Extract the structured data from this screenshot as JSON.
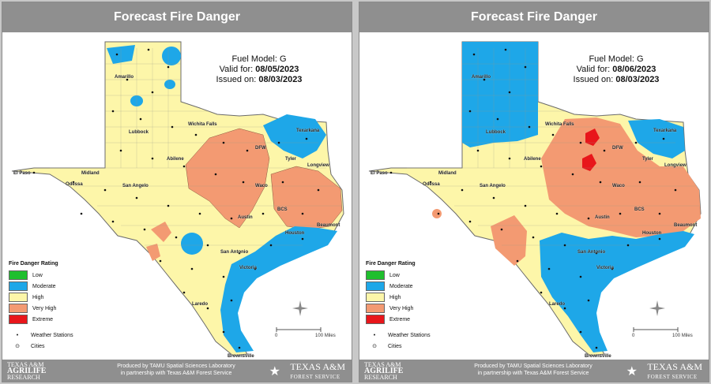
{
  "panels": [
    {
      "title": "Forecast Fire Danger",
      "fuel_model": "Fuel Model: G",
      "valid_label": "Valid for:",
      "valid_date": "08/05/2023",
      "issued_label": "Issued on:",
      "issued_date": "08/03/2023"
    },
    {
      "title": "Forecast Fire Danger",
      "fuel_model": "Fuel Model: G",
      "valid_label": "Valid for:",
      "valid_date": "08/06/2023",
      "issued_label": "Issued on:",
      "issued_date": "08/03/2023"
    }
  ],
  "legend": {
    "title": "Fire Danger Rating",
    "items": [
      {
        "label": "Low",
        "color": "#1fbf2e"
      },
      {
        "label": "Moderate",
        "color": "#1ea7e8"
      },
      {
        "label": "High",
        "color": "#fdf6a9"
      },
      {
        "label": "Very High",
        "color": "#f39a72"
      },
      {
        "label": "Extreme",
        "color": "#e8161b"
      }
    ],
    "stations": "Weather Stations",
    "cities": "Cities"
  },
  "scale": {
    "zero": "0",
    "max": "100 Miles"
  },
  "cities": [
    "Amarillo",
    "Lubbock",
    "Wichita Falls",
    "DFW",
    "Texarkana",
    "Abilene",
    "Tyler",
    "Longview",
    "El Paso",
    "Midland",
    "Odessa",
    "San Angelo",
    "Waco",
    "BCS",
    "Austin",
    "Beaumont",
    "Houston",
    "San Antonio",
    "Victoria",
    "Laredo",
    "Brownsville"
  ],
  "footer": {
    "credit_line1": "Produced by TAMU Spatial Sciences Laboratory",
    "credit_line2": "in partnership with Texas A&M Forest Service",
    "agrilife_top": "TEXAS A&M",
    "agrilife_mid": "AGRILIFE",
    "agrilife_bot": "RESEARCH",
    "tamu_top": "TEXAS A&M",
    "tamu_bot": "FOREST SERVICE"
  }
}
